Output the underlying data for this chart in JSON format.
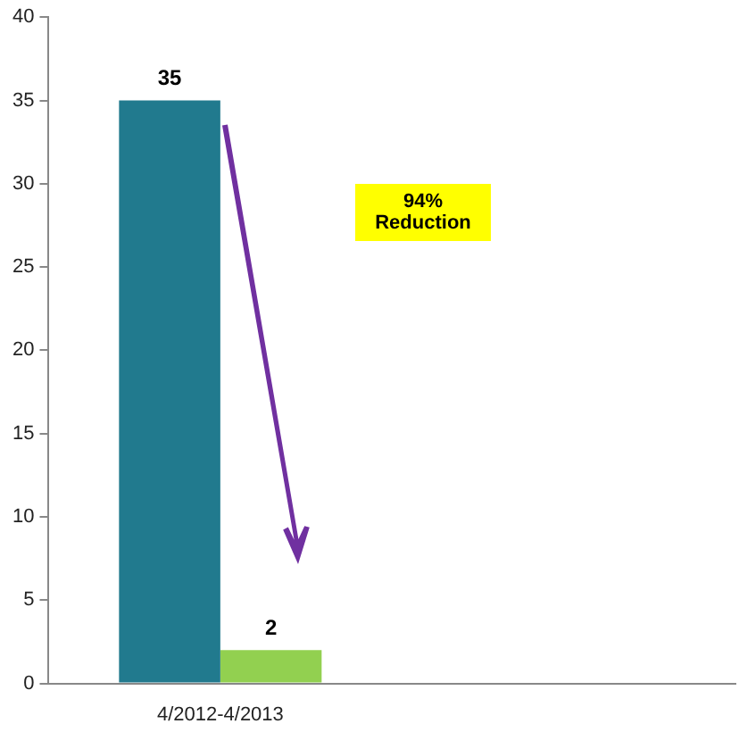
{
  "chart_data": {
    "type": "bar",
    "categories": [
      "4/2012-4/2013",
      null
    ],
    "series": [
      {
        "color": "#217a8e",
        "values": [
          35,
          null
        ]
      },
      {
        "color": "#92d050",
        "values": [
          2,
          null
        ]
      }
    ],
    "ylim": [
      0,
      40
    ],
    "yticks": [
      0,
      5,
      10,
      15,
      20,
      25,
      30,
      35,
      40
    ],
    "grid": false,
    "legend": false,
    "data_labels": true,
    "annotations": [
      "94%\nReduction"
    ]
  }
}
